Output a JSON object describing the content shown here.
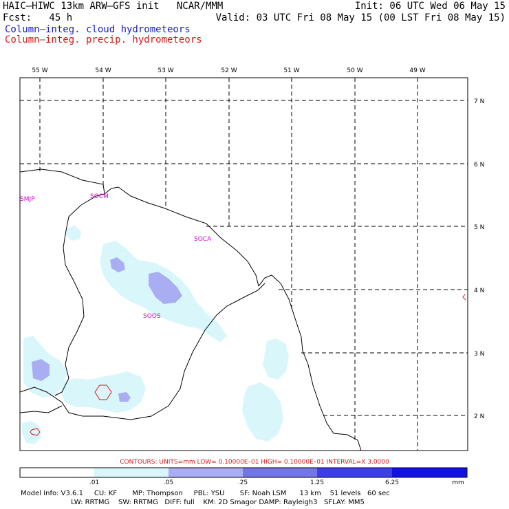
{
  "header": {
    "title_left": "HAIC–HIWC 13km ARW–GFS init   NCAR/MMM",
    "fcst": "Fcst:   45 h",
    "init": "Init: 06 UTC Wed 06 May 15",
    "valid": "Valid: 03 UTC Fri 08 May 15 (00 LST Fri 08 May 15)",
    "field_cloud": "Column–integ. cloud hydrometeors",
    "field_precip": "Column–integ. precip. hydrometeors"
  },
  "map": {
    "lon_labels": [
      "55 W",
      "54 W",
      "53 W",
      "52 W",
      "51 W",
      "50 W",
      "49 W"
    ],
    "lat_labels": [
      "7 N",
      "6 N",
      "5 N",
      "4 N",
      "3 N",
      "2 N"
    ],
    "stations": [
      "SMJP",
      "SOCM",
      "SOCA",
      "SOOS"
    ],
    "colors": {
      "cloud_001": "#d9f7fb",
      "cloud_005": "#a9aef2",
      "cloud_025": "#7276e8",
      "cloud_125": "#3c40e0",
      "cloud_625": "#1212e0",
      "precip_contour": "#d81818",
      "coast": "#000000",
      "grid": "#000000"
    }
  },
  "contours_text": "CONTOURS:  UNITS=mm   LOW= 0.10000E–01   HIGH= 0.10000E–01   INTERVAL=X   3.0000",
  "colorbar": {
    "ticks": [
      ".01",
      ".05",
      ".25",
      "1.25",
      "6.25"
    ],
    "units": "mm"
  },
  "footer": {
    "line1": "Model Info: V3.6.1     CU: KF       MP: Thompson     PBL: YSU       SF: Noah LSM      13 km    51 levels   60 sec",
    "line2": "                       LW: RRTMG    SW: RRTMG   DIFF: full    KM: 2D Smagor DAMP: Rayleigh3   SFLAY: MM5"
  }
}
